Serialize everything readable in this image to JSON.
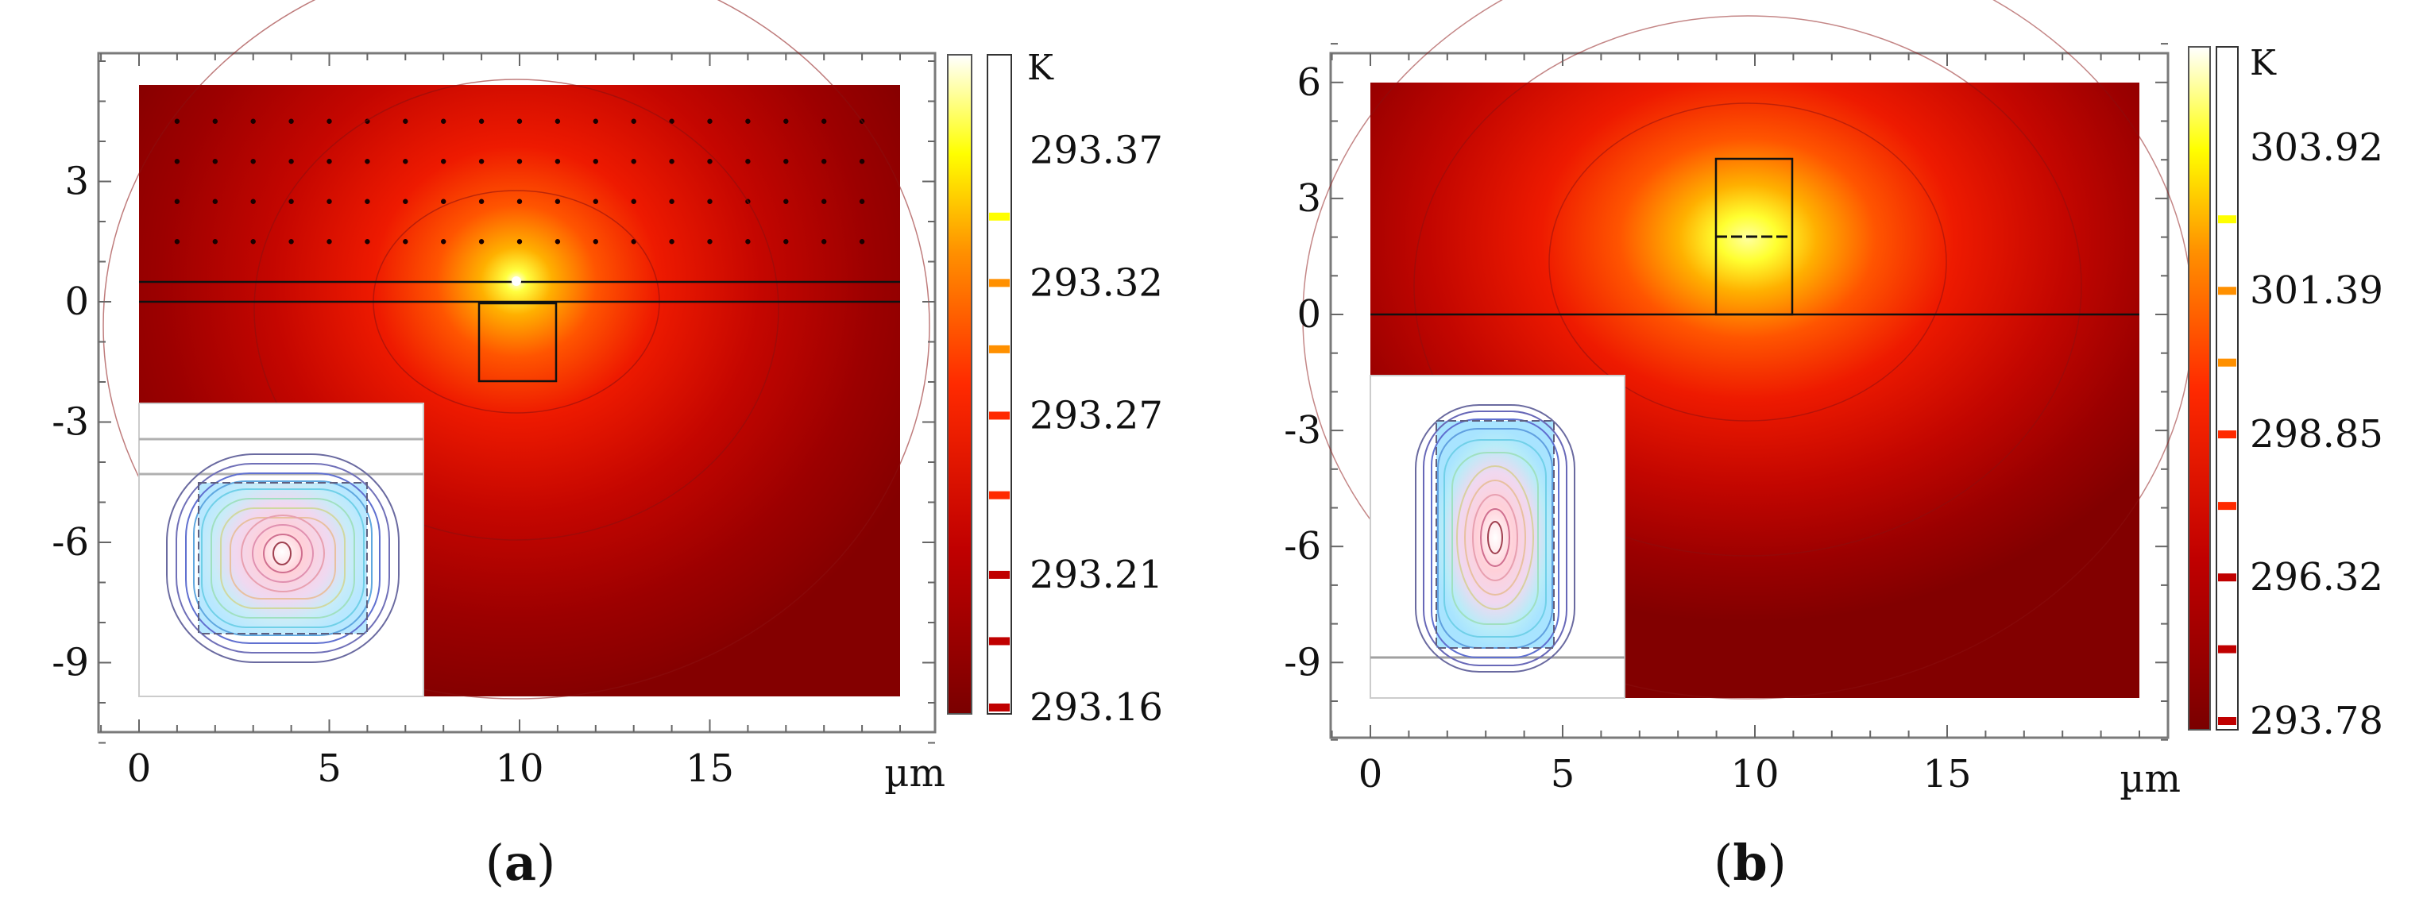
{
  "chart_data": [
    {
      "type": "heatmap",
      "panel_label": "a",
      "unit": "µm",
      "colorbar": {
        "unit": "K",
        "min": 293.16,
        "max": 293.4,
        "ticks": [
          {
            "value": 293.37,
            "label": "293.37"
          },
          {
            "value": 293.32,
            "label": "293.32"
          },
          {
            "value": 293.27,
            "label": "293.27"
          },
          {
            "value": 293.21,
            "label": "293.21"
          },
          {
            "value": 293.16,
            "label": "293.16"
          }
        ]
      },
      "xlim": [
        -1,
        20.5
      ],
      "ylim": [
        -11,
        6.5
      ],
      "xticks": [
        0,
        5,
        10,
        15
      ],
      "yticks": [
        3,
        0,
        -3,
        -6,
        -9
      ],
      "domain": {
        "x": [
          0,
          20
        ],
        "y": [
          -10,
          5.5
        ]
      },
      "hotspot": {
        "x": 10,
        "y": 0.5
      },
      "core_box": {
        "x": [
          9,
          11
        ],
        "y": [
          -2,
          0
        ]
      },
      "layer_lines": [
        0,
        0.5
      ],
      "dot_grid": {
        "x_step": 1,
        "y_values": [
          4.5,
          3.5,
          2.5,
          1.5
        ],
        "x_start": 1,
        "x_end": 19
      }
    },
    {
      "type": "heatmap",
      "panel_label": "b",
      "unit": "µm",
      "colorbar": {
        "unit": "K",
        "min": 293.78,
        "max": 305.2,
        "ticks": [
          {
            "value": 303.92,
            "label": "303.92"
          },
          {
            "value": 301.39,
            "label": "301.39"
          },
          {
            "value": 298.85,
            "label": "298.85"
          },
          {
            "value": 296.32,
            "label": "296.32"
          },
          {
            "value": 293.78,
            "label": "293.78"
          }
        ]
      },
      "xlim": [
        -1,
        20.5
      ],
      "ylim": [
        -11,
        7
      ],
      "xticks": [
        0,
        5,
        10,
        15
      ],
      "yticks": [
        6,
        3,
        0,
        -3,
        -6,
        -9
      ],
      "domain": {
        "x": [
          0,
          20
        ],
        "y": [
          -10,
          6
        ]
      },
      "hotspot": {
        "x": 10,
        "y": 2
      },
      "core_box": {
        "x": [
          9,
          11
        ],
        "y": [
          0,
          4
        ]
      },
      "layer_lines": [
        0
      ]
    }
  ]
}
